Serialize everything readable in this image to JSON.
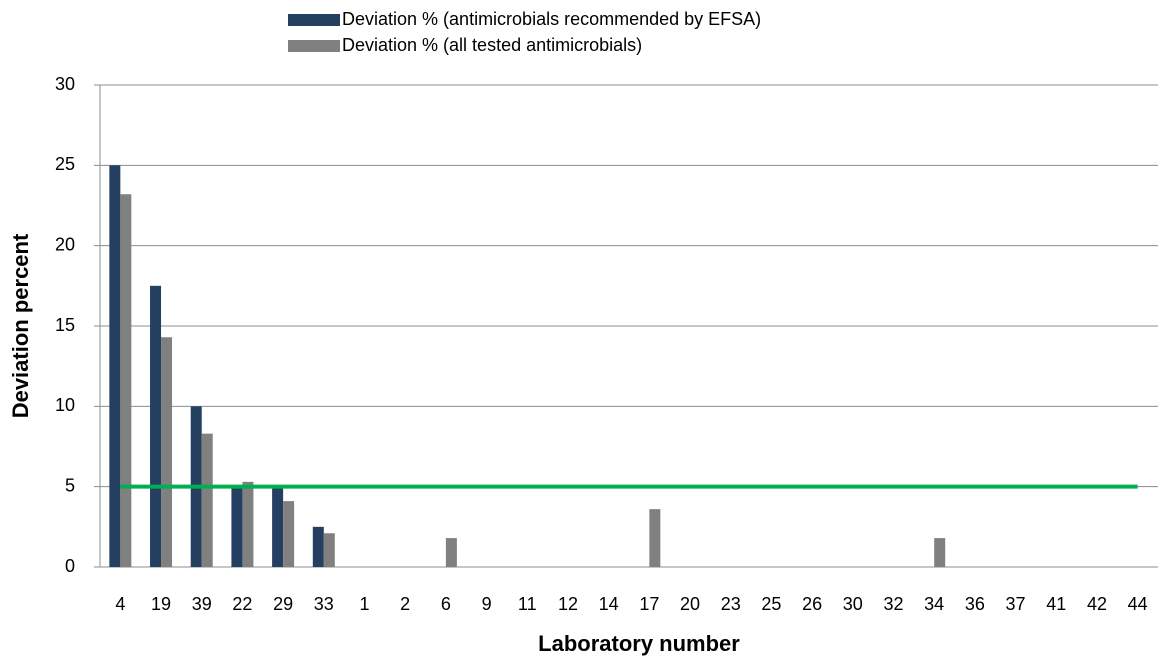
{
  "chart_data": {
    "type": "bar",
    "categories": [
      "4",
      "19",
      "39",
      "22",
      "29",
      "33",
      "1",
      "2",
      "6",
      "9",
      "11",
      "12",
      "14",
      "17",
      "20",
      "23",
      "25",
      "26",
      "30",
      "32",
      "34",
      "36",
      "37",
      "41",
      "42",
      "44"
    ],
    "series": [
      {
        "name": "Deviation % (antimicrobials recommended by EFSA)",
        "color": "#243f60",
        "values": [
          25,
          17.5,
          10,
          5,
          5,
          2.5,
          0,
          0,
          0,
          0,
          0,
          0,
          0,
          0,
          0,
          0,
          0,
          0,
          0,
          0,
          0,
          0,
          0,
          0,
          0,
          0
        ]
      },
      {
        "name": "Deviation % (all tested antimicrobials)",
        "color": "#808080",
        "values": [
          23.2,
          14.3,
          8.3,
          5.3,
          4.1,
          2.1,
          0,
          0,
          1.8,
          0,
          0,
          0,
          0,
          3.6,
          0,
          0,
          0,
          0,
          0,
          0,
          1.8,
          0,
          0,
          0,
          0,
          0
        ]
      }
    ],
    "threshold": 5,
    "threshold_color": "#00b050",
    "x_label": "Laboratory number",
    "y_label": "Deviation percent",
    "ylim": [
      0,
      30
    ],
    "yticks": [
      0,
      5,
      10,
      15,
      20,
      25,
      30
    ],
    "grid": true,
    "legend": "top"
  }
}
